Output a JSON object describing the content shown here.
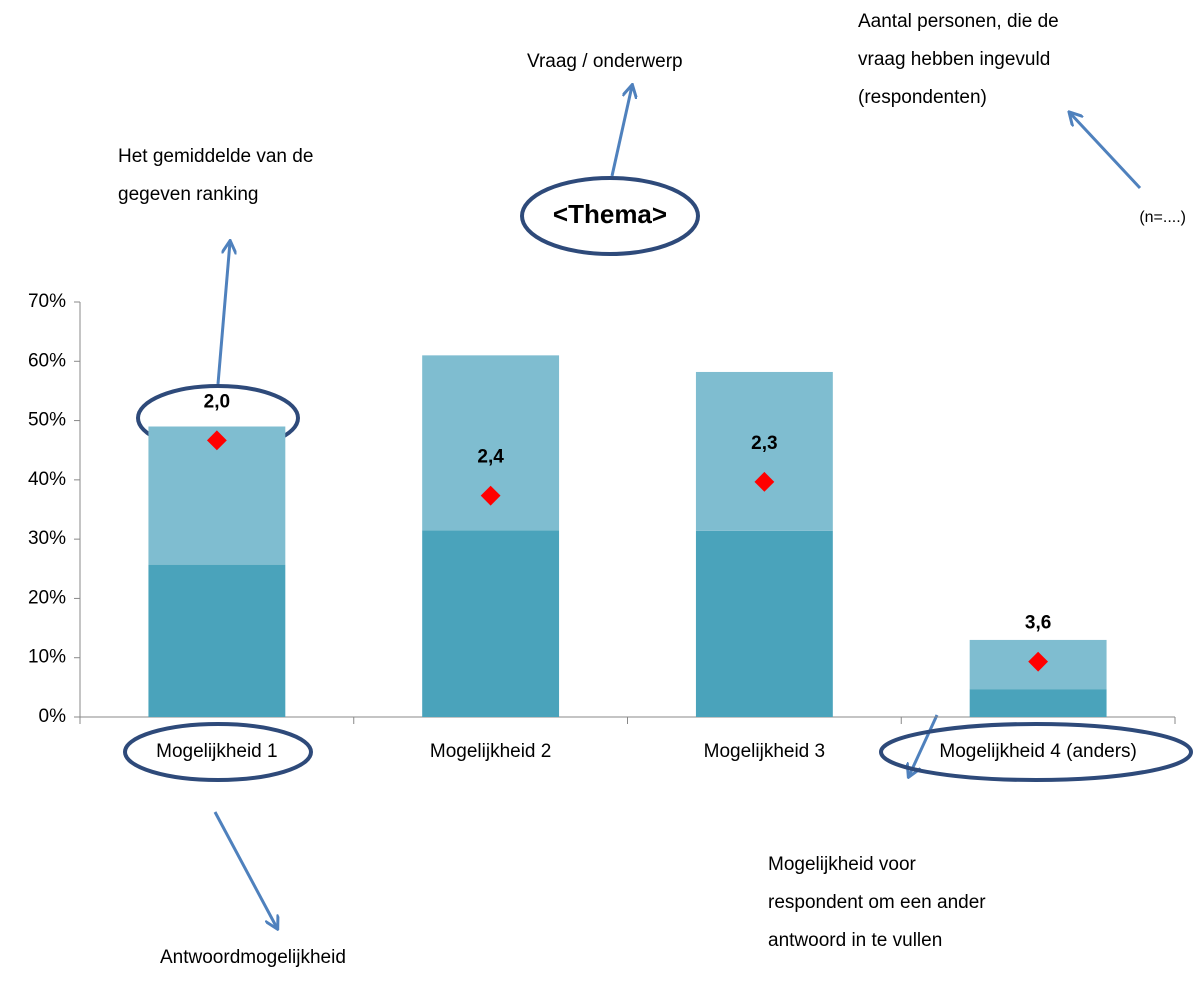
{
  "chart_data": {
    "type": "bar",
    "stacked": true,
    "title": "<Thema>",
    "subtitle": "(n=....)",
    "categories": [
      "Mogelijkheid 1",
      "Mogelijkheid 2",
      "Mogelijkheid 3",
      "Mogelijkheid 4 (anders)"
    ],
    "series": [
      {
        "color": "#4aa3bb",
        "values": [
          25.7,
          31.5,
          31.4,
          4.7
        ]
      },
      {
        "color": "#7fbdd0",
        "values": [
          23.3,
          29.5,
          26.8,
          8.3
        ]
      },
      {
        "type": "scatter",
        "axis": "y2",
        "color": "#ff0000",
        "values": [
          2.0,
          2.4,
          2.3,
          3.6
        ],
        "value_labels": [
          "2,0",
          "2,4",
          "2,3",
          "3,6"
        ]
      }
    ],
    "ylim": [
      0,
      70
    ],
    "yticks": [
      {
        "value": 0,
        "label": "0%"
      },
      {
        "value": 10,
        "label": "10%"
      },
      {
        "value": 20,
        "label": "20%"
      },
      {
        "value": 30,
        "label": "30%"
      },
      {
        "value": 40,
        "label": "40%"
      },
      {
        "value": 50,
        "label": "50%"
      },
      {
        "value": 60,
        "label": "60%"
      },
      {
        "value": 70,
        "label": "70%"
      }
    ],
    "y2lim": [
      4,
      1
    ],
    "annotations": {
      "question": [
        "Vraag / onderwerp"
      ],
      "respondents": [
        "Aantal personen, die de",
        "vraag hebben ingevuld",
        "(respondenten)"
      ],
      "average": [
        "Het gemiddelde van de",
        "gegeven ranking"
      ],
      "answer": [
        "Antwoordmogelijkheid"
      ],
      "other": [
        "Mogelijkheid voor",
        "respondent om een ander",
        "antwoord in te vullen"
      ]
    }
  }
}
